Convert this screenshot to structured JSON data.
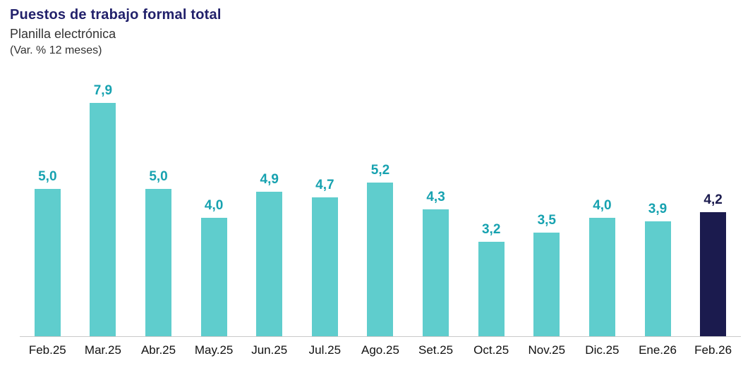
{
  "header": {
    "title": "Puestos de trabajo formal total",
    "subtitle": "Planilla electrónica",
    "unit_note": "(Var. % 12 meses)"
  },
  "chart_data": {
    "type": "bar",
    "title": "Puestos de trabajo formal total",
    "subtitle": "Planilla electrónica",
    "ylabel": "Var. % 12 meses",
    "xlabel": "",
    "categories": [
      "Feb.25",
      "Mar.25",
      "Abr.25",
      "May.25",
      "Jun.25",
      "Jul.25",
      "Ago.25",
      "Set.25",
      "Oct.25",
      "Nov.25",
      "Dic.25",
      "Ene.26",
      "Feb.26"
    ],
    "values": [
      5.0,
      7.9,
      5.0,
      4.0,
      4.9,
      4.7,
      5.2,
      4.3,
      3.2,
      3.5,
      4.0,
      3.9,
      4.2
    ],
    "value_labels": [
      "5,0",
      "7,9",
      "5,0",
      "4,0",
      "4,9",
      "4,7",
      "5,2",
      "4,3",
      "3,2",
      "3,5",
      "4,0",
      "3,9",
      "4,2"
    ],
    "highlight_index": 12,
    "ylim": [
      0,
      8.2
    ],
    "grid": false,
    "legend": false,
    "colors": {
      "bar": "#5FCDCD",
      "bar_highlight": "#1B1B4E",
      "value_label": "#17A2B0",
      "value_label_highlight": "#1B1B4E",
      "title": "#22216B",
      "axis_line": "#c9c9c9",
      "tick_text": "#111111"
    }
  }
}
